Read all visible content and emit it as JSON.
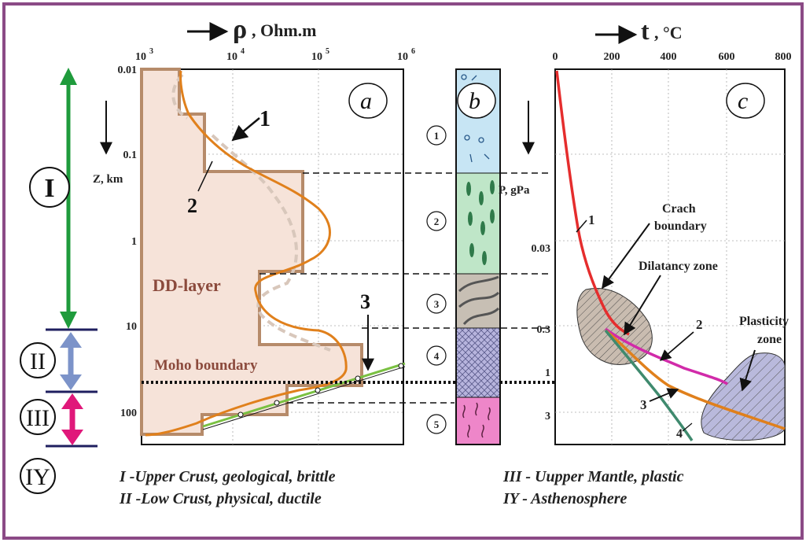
{
  "colors": {
    "frame": "#8b4a86",
    "panel_a_fill": "#f6e3d9",
    "panel_a_stroke": "#b68b6a",
    "orange": "#e0801c",
    "green_arrow": "#1f9b3c",
    "blue_arrow": "#7c93c9",
    "magenta_arrow": "#e0187a",
    "red_curve": "#e52d2d",
    "magenta_curve": "#d12ba9",
    "teal_curve": "#3f8a6e",
    "crack_fill": "#c9bcb0",
    "plastic_fill": "#b9b9dc",
    "layer1": "#c7e5f4",
    "layer2": "#bfe6c8",
    "layer3": "#c7bfb4",
    "layer4": "#b7b4dd",
    "layer5": "#ee86c9"
  },
  "header": {
    "rho_symbol": "ρ",
    "rho_unit": ", Ohm.m",
    "t_symbol": "t",
    "t_unit": ", °C"
  },
  "panel_a": {
    "letter": "a",
    "x_ticks": [
      {
        "base": "10",
        "exp": "3"
      },
      {
        "base": "10",
        "exp": "4"
      },
      {
        "base": "10",
        "exp": "5"
      },
      {
        "base": "10",
        "exp": "6"
      }
    ],
    "y_ticks": [
      "0.01",
      "0.1",
      "1",
      "10",
      "100"
    ],
    "z_label": "Z, km",
    "curve_labels": [
      "1",
      "2",
      "3"
    ],
    "dd_layer": "DD-layer",
    "moho": "Moho boundary"
  },
  "panel_b": {
    "letter": "b",
    "layers": [
      "1",
      "2",
      "3",
      "4",
      "5"
    ]
  },
  "panel_c": {
    "letter": "c",
    "x_ticks": [
      "0",
      "200",
      "400",
      "600",
      "800"
    ],
    "p_label": "P, gPa",
    "y_ticks": [
      "0.03",
      "0.3",
      "1",
      "3"
    ],
    "curve_labels": [
      "1",
      "2",
      "3",
      "4"
    ],
    "crach1": "Crach",
    "crach2": "boundary",
    "dilatancy": "Dilatancy zone",
    "plasticity1": "Plasticity",
    "plasticity2": "zone"
  },
  "zones": [
    "I",
    "II",
    "III",
    "IY"
  ],
  "captions": {
    "c1": "I -Upper Crust, geological,  brittle",
    "c2": "II -Low Crust, physical, ductile",
    "c3": "III - Uupper Mantle, plastic",
    "c4": "IY - Asthenosphere"
  }
}
